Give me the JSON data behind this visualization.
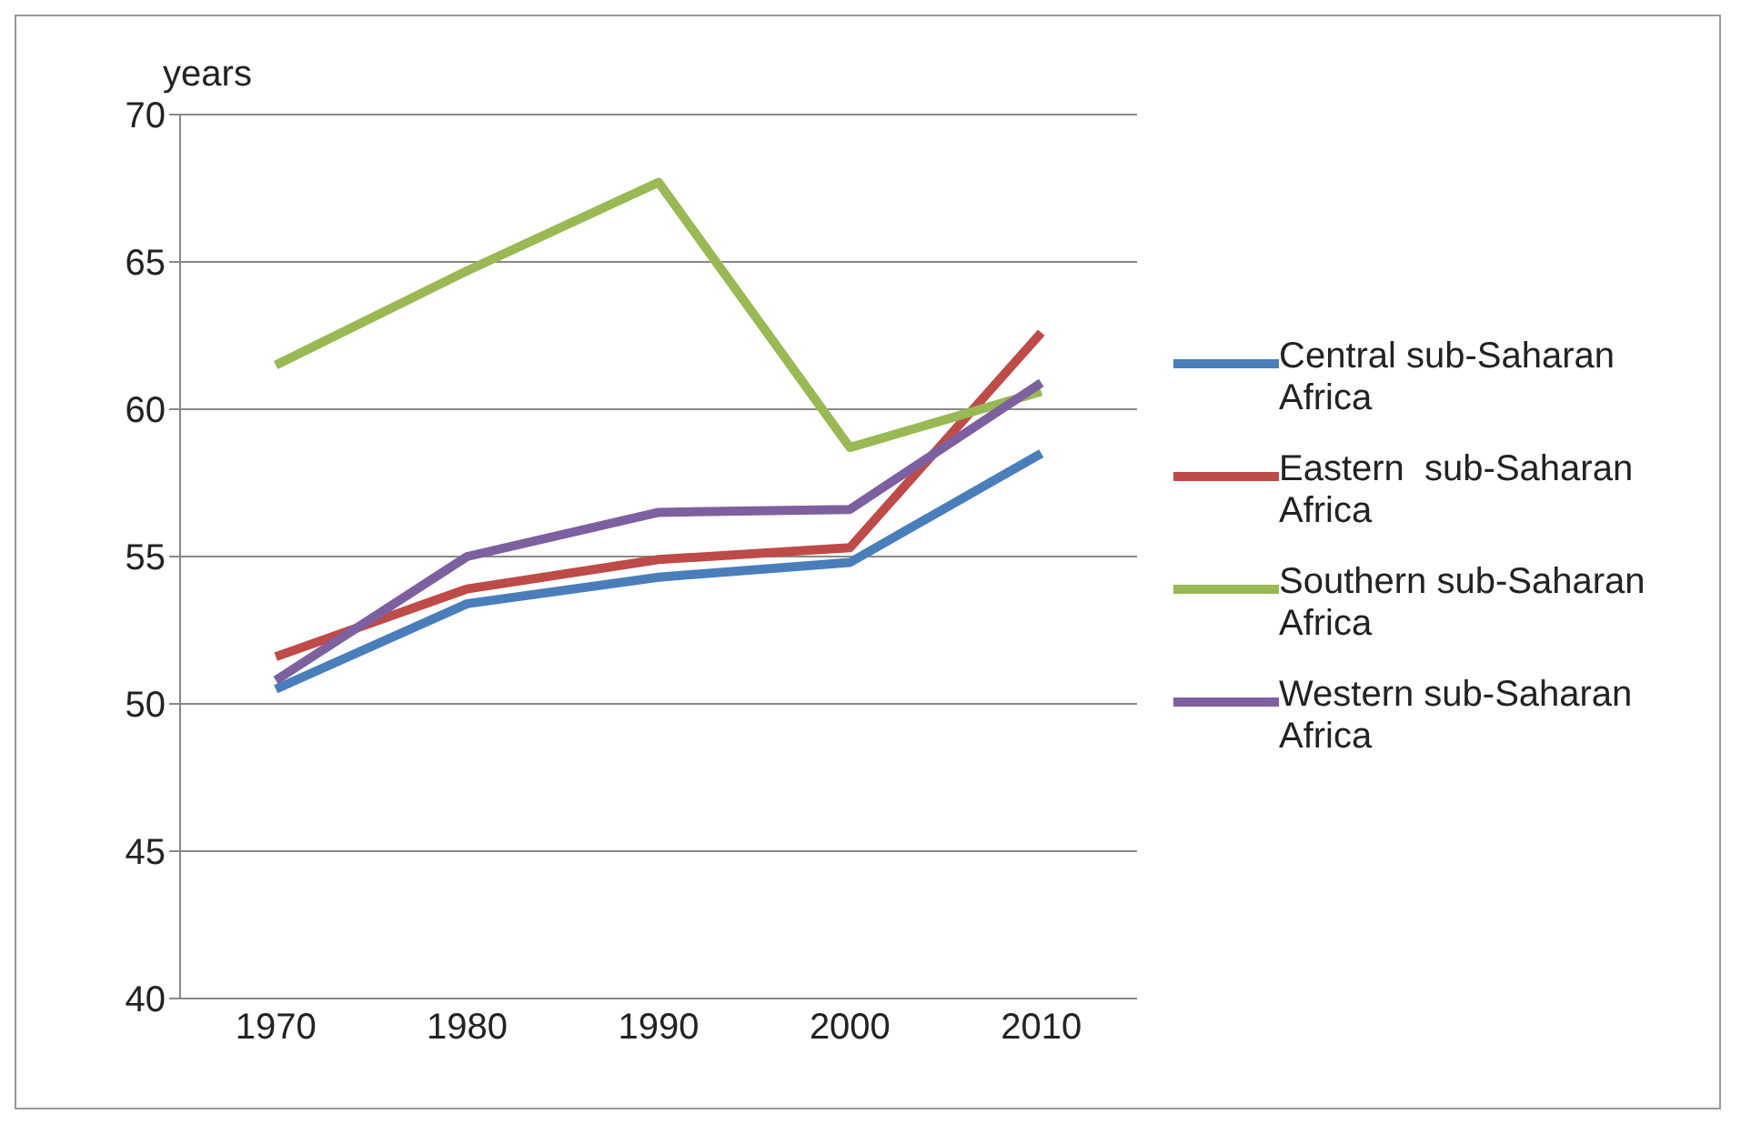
{
  "chart_data": {
    "type": "line",
    "ylabel": "years",
    "categories": [
      "1970",
      "1980",
      "1990",
      "2000",
      "2010"
    ],
    "series": [
      {
        "name": "Central sub-Saharan Africa",
        "color": "#4a7ebb",
        "values": [
          50.5,
          53.4,
          54.3,
          54.8,
          58.5
        ]
      },
      {
        "name": "Eastern  sub-Saharan Africa",
        "color": "#be4b48",
        "values": [
          51.6,
          53.9,
          54.9,
          55.3,
          62.6
        ]
      },
      {
        "name": "Southern sub-Saharan Africa",
        "color": "#98b954",
        "values": [
          61.5,
          64.7,
          67.7,
          58.7,
          60.6
        ]
      },
      {
        "name": "Western sub-Saharan Africa",
        "color": "#7d60a0",
        "values": [
          50.8,
          55.0,
          56.5,
          56.6,
          60.9
        ]
      }
    ],
    "ylim": [
      40,
      70
    ],
    "yticks": [
      40,
      45,
      50,
      55,
      60,
      65,
      70
    ],
    "grid": "y",
    "legend": "right",
    "marker": "none",
    "line_style": "solid"
  }
}
